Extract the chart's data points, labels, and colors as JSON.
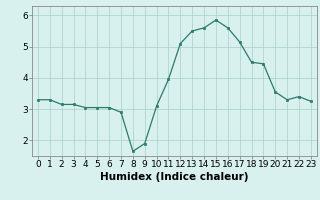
{
  "x": [
    0,
    1,
    2,
    3,
    4,
    5,
    6,
    7,
    8,
    9,
    10,
    11,
    12,
    13,
    14,
    15,
    16,
    17,
    18,
    19,
    20,
    21,
    22,
    23
  ],
  "y": [
    3.3,
    3.3,
    3.15,
    3.15,
    3.05,
    3.05,
    3.05,
    2.9,
    1.65,
    1.9,
    3.1,
    3.95,
    5.1,
    5.5,
    5.6,
    5.85,
    5.6,
    5.15,
    4.5,
    4.45,
    3.55,
    3.3,
    3.4,
    3.25
  ],
  "line_color": "#2d7a6e",
  "marker_color": "#2d7a6e",
  "bg_color": "#d8f0ee",
  "grid_color": "#a8cfcb",
  "xlabel": "Humidex (Indice chaleur)",
  "ylim": [
    1.5,
    6.3
  ],
  "xlim": [
    -0.5,
    23.5
  ],
  "yticks": [
    2,
    3,
    4,
    5,
    6
  ],
  "xticks": [
    0,
    1,
    2,
    3,
    4,
    5,
    6,
    7,
    8,
    9,
    10,
    11,
    12,
    13,
    14,
    15,
    16,
    17,
    18,
    19,
    20,
    21,
    22,
    23
  ],
  "xlabel_fontsize": 7.5,
  "tick_fontsize": 6.5
}
